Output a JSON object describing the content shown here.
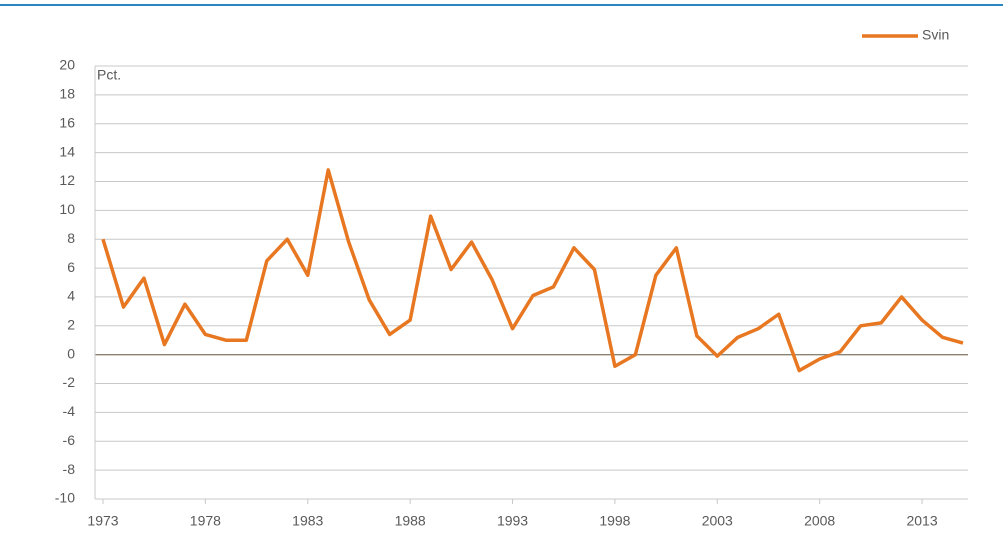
{
  "chart_data": {
    "type": "line",
    "y_axis_label": "Pct.",
    "x": [
      1973,
      1974,
      1975,
      1976,
      1977,
      1978,
      1979,
      1980,
      1981,
      1982,
      1983,
      1984,
      1985,
      1986,
      1987,
      1988,
      1989,
      1990,
      1991,
      1992,
      1993,
      1994,
      1995,
      1996,
      1997,
      1998,
      1999,
      2000,
      2001,
      2002,
      2003,
      2004,
      2005,
      2006,
      2007,
      2008,
      2009,
      2010,
      2011,
      2012,
      2013,
      2014,
      2015
    ],
    "series": [
      {
        "name": "Svin",
        "color": "#e87722",
        "values": [
          8.0,
          3.3,
          5.3,
          0.7,
          3.5,
          1.4,
          1.0,
          1.0,
          6.5,
          8.0,
          5.5,
          12.8,
          7.8,
          3.8,
          1.4,
          2.4,
          9.6,
          5.9,
          7.8,
          5.2,
          1.8,
          4.1,
          4.7,
          7.4,
          5.9,
          -0.8,
          0.0,
          5.5,
          7.4,
          1.3,
          -0.1,
          1.2,
          1.8,
          2.8,
          -1.1,
          -0.3,
          0.2,
          2.0,
          2.2,
          4.0,
          2.4,
          1.2,
          0.8
        ]
      }
    ],
    "xlim": [
      1973,
      2015
    ],
    "xticks": [
      1973,
      1978,
      1983,
      1988,
      1993,
      1998,
      2003,
      2008,
      2013
    ],
    "ylim": [
      -10,
      20
    ],
    "yticks": [
      -10,
      -8,
      -6,
      -4,
      -2,
      0,
      2,
      4,
      6,
      8,
      10,
      12,
      14,
      16,
      18,
      20
    ],
    "grid": true,
    "legend": "top-right"
  }
}
